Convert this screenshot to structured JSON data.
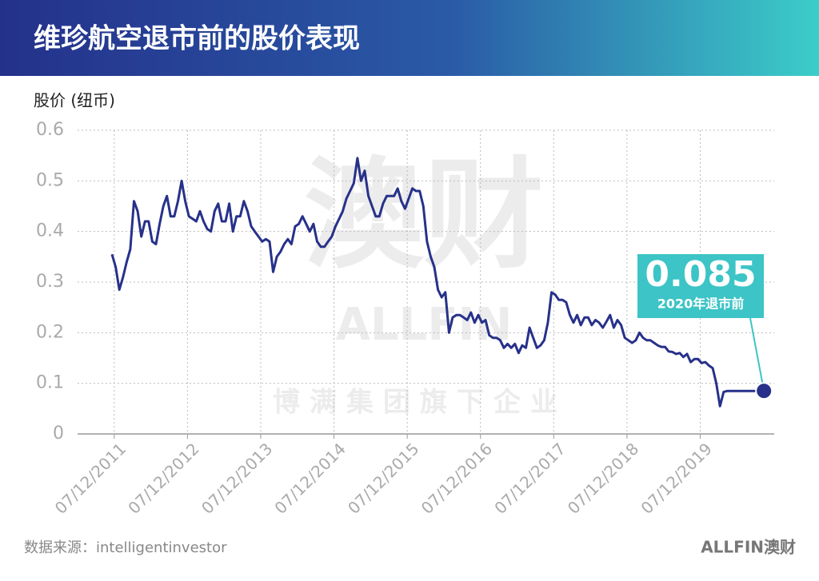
{
  "header": {
    "title": "维珍航空退市前的股价表现"
  },
  "chart_data": {
    "type": "line",
    "y_label": "股价 (纽币)",
    "color": "#27318a",
    "grid": true,
    "x": [
      2011.9,
      2011.95,
      2012,
      2012.05,
      2012.1,
      2012.15,
      2012.2,
      2012.25,
      2012.3,
      2012.35,
      2012.4,
      2012.45,
      2012.5,
      2012.55,
      2012.6,
      2012.65,
      2012.7,
      2012.75,
      2012.8,
      2012.85,
      2012.9,
      2012.95,
      2013,
      2013.05,
      2013.1,
      2013.15,
      2013.2,
      2013.25,
      2013.3,
      2013.35,
      2013.4,
      2013.45,
      2013.5,
      2013.55,
      2013.6,
      2013.65,
      2013.7,
      2013.75,
      2013.8,
      2013.85,
      2013.9,
      2013.95,
      2014,
      2014.05,
      2014.1,
      2014.15,
      2014.2,
      2014.25,
      2014.3,
      2014.35,
      2014.4,
      2014.45,
      2014.5,
      2014.55,
      2014.6,
      2014.65,
      2014.7,
      2014.75,
      2014.8,
      2014.85,
      2014.9,
      2014.95,
      2015,
      2015.05,
      2015.1,
      2015.15,
      2015.2,
      2015.25,
      2015.3,
      2015.35,
      2015.4,
      2015.45,
      2015.5,
      2015.55,
      2015.6,
      2015.65,
      2015.7,
      2015.75,
      2015.8,
      2015.85,
      2015.9,
      2015.95,
      2016,
      2016.05,
      2016.1,
      2016.15,
      2016.2,
      2016.25,
      2016.3,
      2016.35,
      2016.4,
      2016.45,
      2016.5,
      2016.55,
      2016.6,
      2016.65,
      2016.7,
      2016.75,
      2016.8,
      2016.85,
      2016.9,
      2016.95,
      2017,
      2017.05,
      2017.1,
      2017.15,
      2017.2,
      2017.25,
      2017.3,
      2017.35,
      2017.4,
      2017.45,
      2017.5,
      2017.55,
      2017.6,
      2017.65,
      2017.7,
      2017.75,
      2017.8,
      2017.85,
      2017.9,
      2017.95,
      2018,
      2018.05,
      2018.1,
      2018.15,
      2018.2,
      2018.25,
      2018.3,
      2018.35,
      2018.4,
      2018.45,
      2018.5,
      2018.55,
      2018.6,
      2018.65,
      2018.7,
      2018.75,
      2018.8,
      2018.85,
      2018.9,
      2018.95,
      2019,
      2019.05,
      2019.1,
      2019.15,
      2019.2,
      2019.25,
      2019.3,
      2019.35,
      2019.4,
      2019.45,
      2019.5,
      2019.55,
      2019.6,
      2019.65,
      2019.7,
      2019.75,
      2019.8,
      2019.85,
      2019.9,
      2019.95,
      2020,
      2020.05,
      2020.1,
      2020.15,
      2020.2,
      2020.25,
      2020.3,
      2020.8
    ],
    "values": [
      0.355,
      0.33,
      0.285,
      0.31,
      0.34,
      0.365,
      0.46,
      0.44,
      0.39,
      0.42,
      0.42,
      0.38,
      0.375,
      0.415,
      0.45,
      0.47,
      0.43,
      0.43,
      0.46,
      0.5,
      0.46,
      0.43,
      0.425,
      0.42,
      0.44,
      0.42,
      0.405,
      0.4,
      0.44,
      0.455,
      0.42,
      0.42,
      0.455,
      0.4,
      0.43,
      0.43,
      0.46,
      0.44,
      0.41,
      0.4,
      0.39,
      0.38,
      0.385,
      0.38,
      0.32,
      0.35,
      0.36,
      0.375,
      0.385,
      0.375,
      0.41,
      0.415,
      0.43,
      0.415,
      0.4,
      0.415,
      0.38,
      0.37,
      0.37,
      0.38,
      0.39,
      0.41,
      0.425,
      0.44,
      0.465,
      0.48,
      0.495,
      0.545,
      0.5,
      0.52,
      0.47,
      0.45,
      0.43,
      0.43,
      0.455,
      0.47,
      0.47,
      0.47,
      0.485,
      0.46,
      0.445,
      0.465,
      0.485,
      0.48,
      0.48,
      0.45,
      0.38,
      0.35,
      0.33,
      0.285,
      0.27,
      0.28,
      0.2,
      0.23,
      0.235,
      0.235,
      0.23,
      0.225,
      0.24,
      0.22,
      0.235,
      0.22,
      0.225,
      0.195,
      0.19,
      0.19,
      0.185,
      0.17,
      0.178,
      0.17,
      0.178,
      0.16,
      0.175,
      0.17,
      0.21,
      0.19,
      0.17,
      0.175,
      0.185,
      0.22,
      0.28,
      0.275,
      0.265,
      0.265,
      0.26,
      0.235,
      0.22,
      0.235,
      0.215,
      0.23,
      0.23,
      0.215,
      0.225,
      0.22,
      0.21,
      0.222,
      0.235,
      0.21,
      0.225,
      0.215,
      0.19,
      0.185,
      0.18,
      0.185,
      0.2,
      0.19,
      0.185,
      0.185,
      0.18,
      0.175,
      0.172,
      0.172,
      0.163,
      0.162,
      0.158,
      0.16,
      0.152,
      0.158,
      0.142,
      0.148,
      0.148,
      0.14,
      0.142,
      0.135,
      0.13,
      0.1,
      0.055,
      0.083,
      0.085,
      0.085
    ],
    "xlim": [
      2011.43,
      2020.94
    ],
    "xticks": [
      {
        "value": 2011.93,
        "label": "07/12/2011"
      },
      {
        "value": 2012.93,
        "label": "07/12/2012"
      },
      {
        "value": 2013.93,
        "label": "07/12/2013"
      },
      {
        "value": 2014.93,
        "label": "07/12/2014"
      },
      {
        "value": 2015.93,
        "label": "07/12/2015"
      },
      {
        "value": 2016.93,
        "label": "07/12/2016"
      },
      {
        "value": 2017.93,
        "label": "07/12/2017"
      },
      {
        "value": 2018.93,
        "label": "07/12/2018"
      },
      {
        "value": 2019.93,
        "label": "07/12/2019"
      }
    ],
    "ylim": [
      0,
      0.6
    ],
    "yticks": [
      0,
      0.1,
      0.2,
      0.3,
      0.4,
      0.5,
      0.6
    ],
    "annotation": {
      "value": "0.085",
      "text": "2020年退市前",
      "color": "#3cc4c6"
    }
  },
  "watermark": {
    "logo": "澳财",
    "brand": "ALLFIN",
    "tagline": "博满集团旗下企业"
  },
  "footer": {
    "source": "数据来源：intelligentinvestor",
    "logo": "ALLFIN澳财"
  }
}
